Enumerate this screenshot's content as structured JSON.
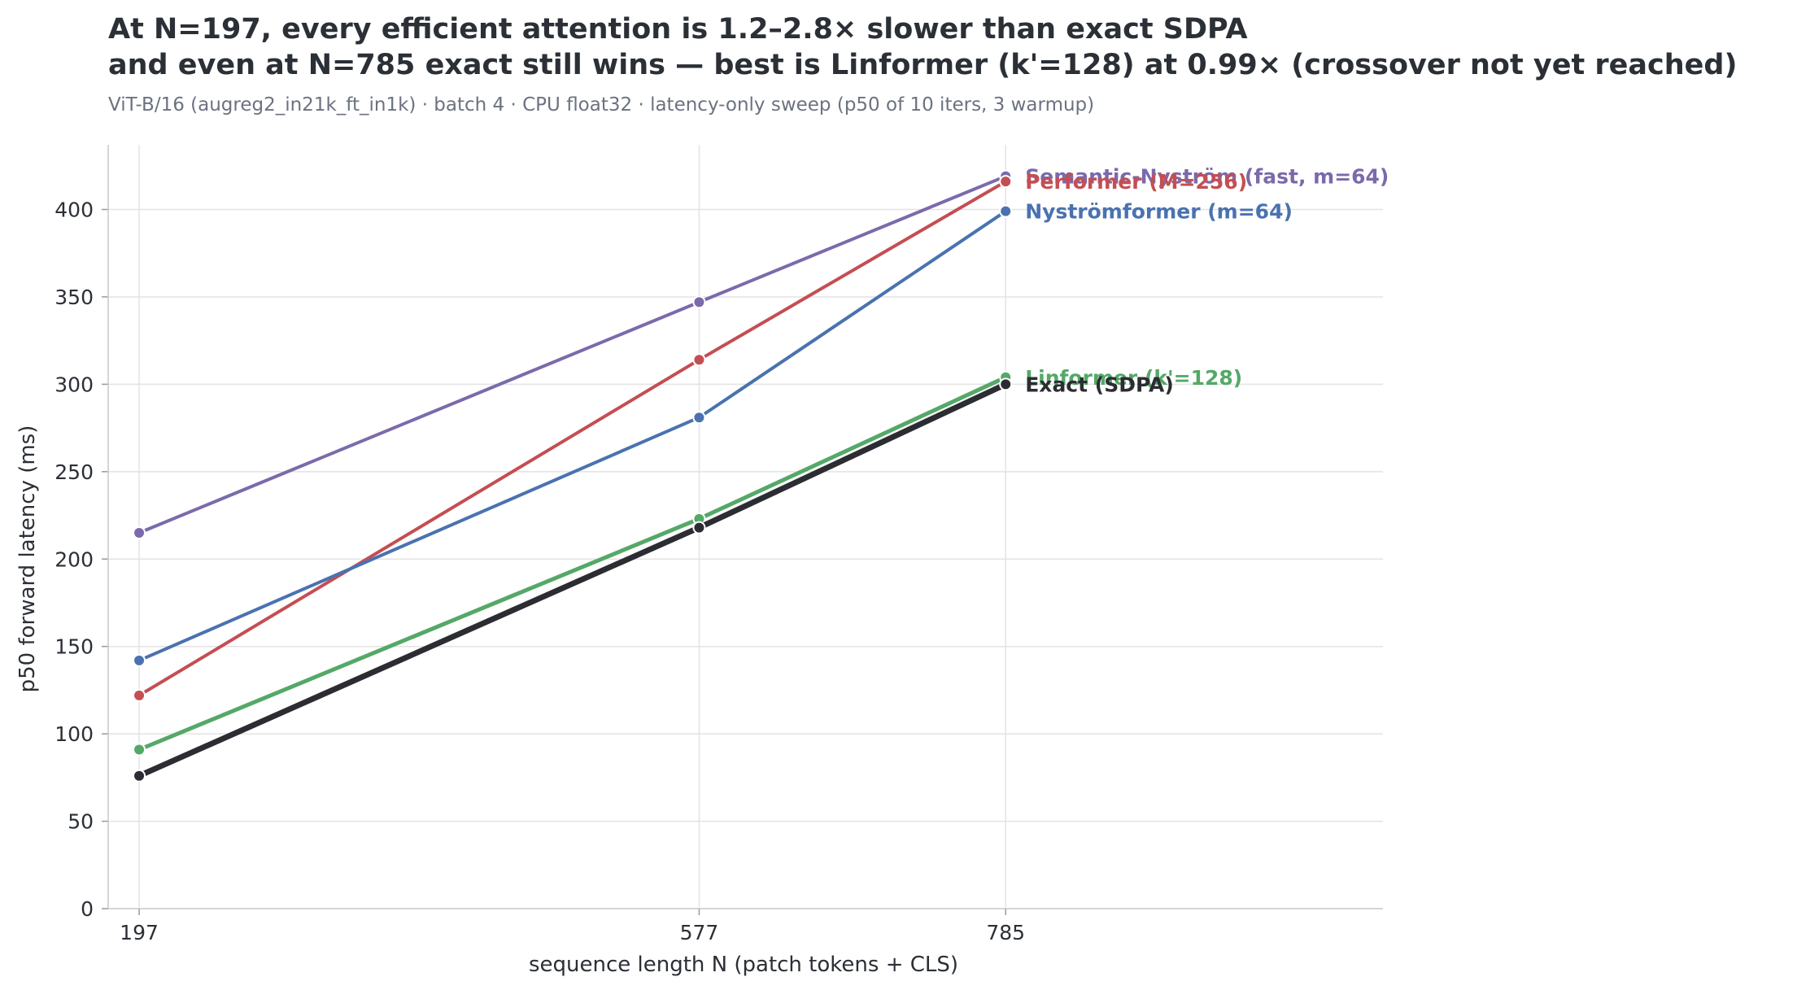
{
  "chart_data": {
    "type": "line",
    "title": "At N=197, every efficient attention is 1.2–2.8× slower than exact SDPA",
    "title_line2": "and even at N=785 exact still wins — best is Linformer (k'=128) at 0.99× (crossover not yet reached)",
    "subtitle": "ViT-B/16 (augreg2_in21k_ft_in1k) · batch 4 · CPU float32 · latency-only sweep (p50 of 10 iters, 3 warmup)",
    "xlabel": "sequence length  N  (patch tokens + CLS)",
    "ylabel": "p50 forward latency  (ms)",
    "x": [
      197,
      577,
      785
    ],
    "xlim": [
      176,
      1041
    ],
    "ylim": [
      0,
      437
    ],
    "yticks": [
      0,
      50,
      100,
      150,
      200,
      250,
      300,
      350,
      400
    ],
    "grid": true,
    "legend": "direct labels at line ends",
    "series": [
      {
        "name": "Semantic-Nyström (fast, m=64)",
        "color": "#7b6aab",
        "values": [
          215,
          347,
          419
        ],
        "width": 4
      },
      {
        "name": "Performer (M=256)",
        "color": "#c44e52",
        "values": [
          122,
          314,
          416
        ],
        "width": 4
      },
      {
        "name": "Nyströmformer (m=64)",
        "color": "#4a72b0",
        "values": [
          142,
          281,
          399
        ],
        "width": 4
      },
      {
        "name": "Linformer (k'=128)",
        "color": "#55a868",
        "values": [
          91,
          223,
          304
        ],
        "width": 5
      },
      {
        "name": "Exact (SDPA)",
        "color": "#2b2d33",
        "values": [
          76,
          218,
          300
        ],
        "width": 7
      }
    ]
  }
}
